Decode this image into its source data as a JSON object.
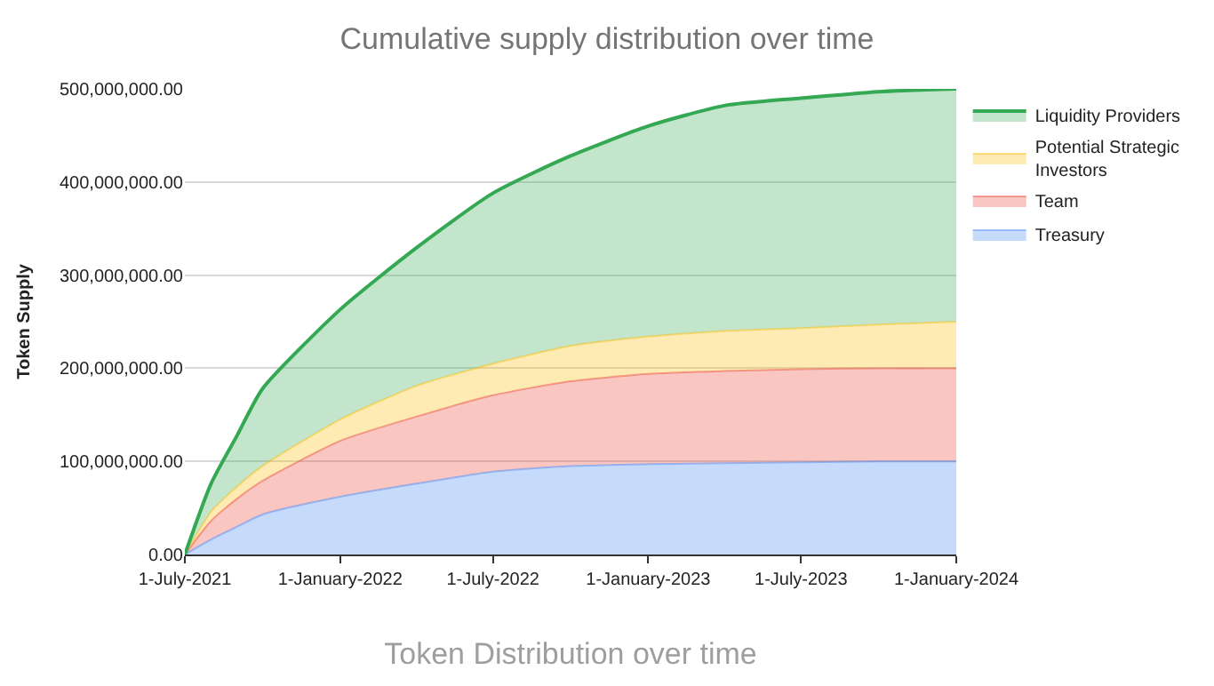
{
  "chart_data": {
    "type": "area",
    "stacked": true,
    "title": "Cumulative supply distribution over time",
    "xlabel": "Token Distribution over time",
    "ylabel": "Token Supply",
    "x": [
      "2021-07-01",
      "2021-08-01",
      "2021-09-01",
      "2021-10-01",
      "2022-01-01",
      "2022-04-01",
      "2022-07-01",
      "2022-10-01",
      "2023-01-01",
      "2023-04-01",
      "2023-07-01",
      "2023-10-01",
      "2024-01-01"
    ],
    "series": [
      {
        "name": "Treasury",
        "color": "#4285f4",
        "values": [
          0,
          16000000,
          30000000,
          43000000,
          62000000,
          76000000,
          89000000,
          95000000,
          97000000,
          98000000,
          99000000,
          100000000,
          100000000
        ]
      },
      {
        "name": "Team",
        "color": "#ea4335",
        "values": [
          0,
          20000000,
          30000000,
          36000000,
          60000000,
          72000000,
          82000000,
          91000000,
          97000000,
          99000000,
          100000000,
          100000000,
          100000000
        ]
      },
      {
        "name": "Potential Strategic Investors",
        "color": "#fbbc04",
        "values": [
          0,
          10000000,
          13000000,
          16000000,
          23000000,
          33000000,
          34000000,
          38000000,
          40000000,
          43000000,
          44000000,
          47000000,
          50000000
        ]
      },
      {
        "name": "Liquidity Providers",
        "color": "#34a853",
        "values": [
          0,
          30000000,
          55000000,
          83000000,
          118000000,
          148000000,
          183000000,
          204000000,
          226000000,
          242000000,
          247000000,
          250000000,
          250000000
        ]
      }
    ],
    "xlim": [
      "2021-07-01",
      "2024-01-01"
    ],
    "xticks": [
      {
        "value": "2021-07-01",
        "label": "1-July-2021"
      },
      {
        "value": "2022-01-01",
        "label": "1-January-2022"
      },
      {
        "value": "2022-07-01",
        "label": "1-July-2022"
      },
      {
        "value": "2023-01-01",
        "label": "1-January-2023"
      },
      {
        "value": "2023-07-01",
        "label": "1-July-2023"
      },
      {
        "value": "2024-01-01",
        "label": "1-January-2024"
      }
    ],
    "ylim": [
      0,
      500000000
    ],
    "yticks": [
      {
        "value": 0,
        "label": "0.00"
      },
      {
        "value": 100000000,
        "label": "100,000,000.00"
      },
      {
        "value": 200000000,
        "label": "200,000,000.00"
      },
      {
        "value": 300000000,
        "label": "300,000,000.00"
      },
      {
        "value": 400000000,
        "label": "400,000,000.00"
      },
      {
        "value": 500000000,
        "label": "500,000,000.00"
      }
    ],
    "grid": "y",
    "legend": "top right"
  }
}
